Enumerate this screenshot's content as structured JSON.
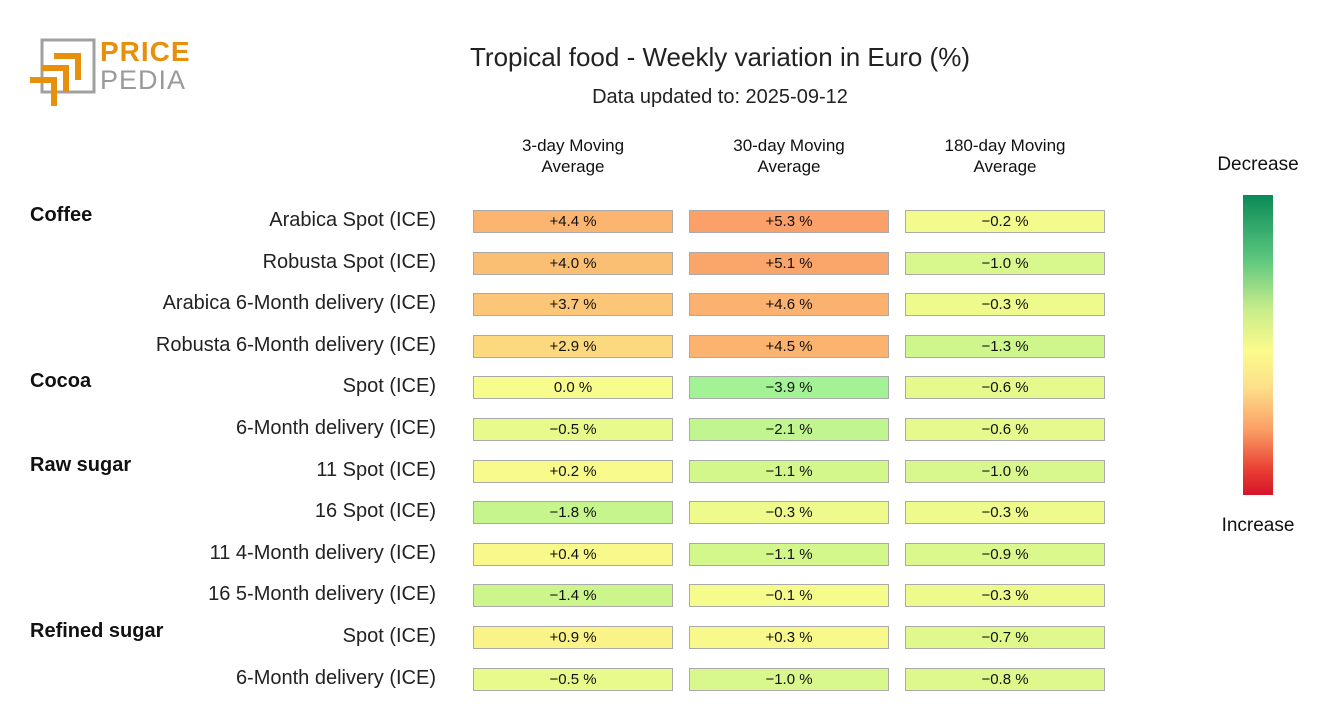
{
  "logo": {
    "line1": "PRICE",
    "line2": "PEDIA",
    "colors": {
      "orange": "#e8900c",
      "gray": "#9a9a9a"
    }
  },
  "chart_data": {
    "type": "table",
    "title": "Tropical food - Weekly variation in Euro (%)",
    "subtitle": "Data updated to: 2025-09-12",
    "columns": [
      "3-day Moving\nAverage",
      "30-day Moving\nAverage",
      "180-day Moving\nAverage"
    ],
    "legend": {
      "top": "Decrease",
      "bottom": "Increase"
    },
    "groups": [
      {
        "name": "Coffee",
        "rows": [
          {
            "label": "Arabica Spot (ICE)",
            "values": [
              4.4,
              5.3,
              -0.2
            ],
            "display": [
              "+4.4 %",
              "+5.3 %",
              "−0.2 %"
            ]
          },
          {
            "label": "Robusta Spot (ICE)",
            "values": [
              4.0,
              5.1,
              -1.0
            ],
            "display": [
              "+4.0 %",
              "+5.1 %",
              "−1.0 %"
            ]
          },
          {
            "label": "Arabica 6-Month delivery (ICE)",
            "values": [
              3.7,
              4.6,
              -0.3
            ],
            "display": [
              "+3.7 %",
              "+4.6 %",
              "−0.3 %"
            ]
          },
          {
            "label": "Robusta 6-Month delivery (ICE)",
            "values": [
              2.9,
              4.5,
              -1.3
            ],
            "display": [
              "+2.9 %",
              "+4.5 %",
              "−1.3 %"
            ]
          }
        ]
      },
      {
        "name": "Cocoa",
        "rows": [
          {
            "label": "Spot (ICE)",
            "values": [
              0.0,
              -3.9,
              -0.6
            ],
            "display": [
              "0.0 %",
              "−3.9 %",
              "−0.6 %"
            ]
          },
          {
            "label": "6-Month delivery (ICE)",
            "values": [
              -0.5,
              -2.1,
              -0.6
            ],
            "display": [
              "−0.5 %",
              "−2.1 %",
              "−0.6 %"
            ]
          }
        ]
      },
      {
        "name": "Raw sugar",
        "rows": [
          {
            "label": "11 Spot (ICE)",
            "values": [
              0.2,
              -1.1,
              -1.0
            ],
            "display": [
              "+0.2 %",
              "−1.1 %",
              "−1.0 %"
            ]
          },
          {
            "label": "16 Spot (ICE)",
            "values": [
              -1.8,
              -0.3,
              -0.3
            ],
            "display": [
              "−1.8 %",
              "−0.3 %",
              "−0.3 %"
            ]
          },
          {
            "label": "11 4-Month delivery (ICE)",
            "values": [
              0.4,
              -1.1,
              -0.9
            ],
            "display": [
              "+0.4 %",
              "−1.1 %",
              "−0.9 %"
            ]
          },
          {
            "label": "16 5-Month delivery (ICE)",
            "values": [
              -1.4,
              -0.1,
              -0.3
            ],
            "display": [
              "−1.4 %",
              "−0.1 %",
              "−0.3 %"
            ]
          }
        ]
      },
      {
        "name": "Refined sugar",
        "rows": [
          {
            "label": "Spot (ICE)",
            "values": [
              0.9,
              0.3,
              -0.7
            ],
            "display": [
              "+0.9 %",
              "+0.3 %",
              "−0.7 %"
            ]
          },
          {
            "label": "6-Month delivery (ICE)",
            "values": [
              -0.5,
              -1.0,
              -0.8
            ],
            "display": [
              "−0.5 %",
              "−1.0 %",
              "−0.8 %"
            ]
          }
        ]
      }
    ]
  }
}
